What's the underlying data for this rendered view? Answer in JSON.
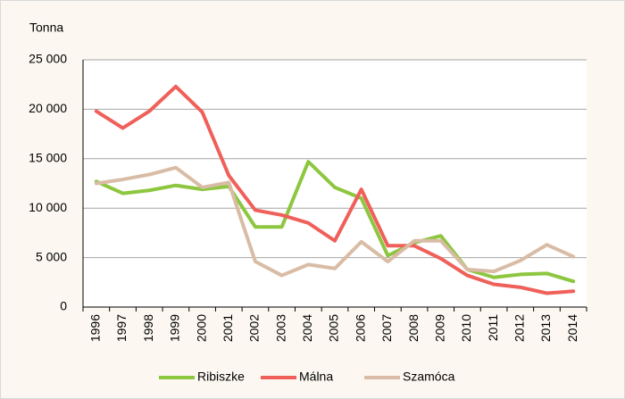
{
  "chart_data": {
    "type": "line",
    "y_label": "Tonna",
    "categories": [
      "1996",
      "1997",
      "1998",
      "1999",
      "2000",
      "2001",
      "2002",
      "2003",
      "2004",
      "2005",
      "2006",
      "2007",
      "2008",
      "2009",
      "2010",
      "2011",
      "2012",
      "2013",
      "2014"
    ],
    "series": [
      {
        "name": "Ribiszke",
        "color": "#8dc63f",
        "values": [
          12700,
          11500,
          11800,
          12300,
          11900,
          12200,
          8100,
          8100,
          14700,
          12100,
          11000,
          5200,
          6500,
          7200,
          3800,
          3000,
          3300,
          3400,
          2600
        ]
      },
      {
        "name": "Málna",
        "color": "#f0605a",
        "values": [
          19800,
          18100,
          19800,
          22300,
          19700,
          13300,
          9800,
          9300,
          8500,
          6700,
          11900,
          6200,
          6200,
          4900,
          3200,
          2300,
          2000,
          1400,
          1600
        ]
      },
      {
        "name": "Szamóca",
        "color": "#d9bca5",
        "values": [
          12500,
          12900,
          13400,
          14100,
          12100,
          12600,
          4600,
          3200,
          4300,
          3900,
          6600,
          4600,
          6700,
          6700,
          3800,
          3600,
          4700,
          6300,
          5100
        ]
      }
    ],
    "ylim": [
      0,
      25000
    ],
    "yticks": [
      0,
      {
        "value": 5000,
        "label": "5 000"
      },
      {
        "value": 10000,
        "label": "10 000"
      },
      {
        "value": 15000,
        "label": "15 000"
      },
      {
        "value": 20000,
        "label": "20 000"
      },
      {
        "value": 25000,
        "label": "25 000"
      }
    ],
    "grid": true,
    "legend": "bottom"
  }
}
